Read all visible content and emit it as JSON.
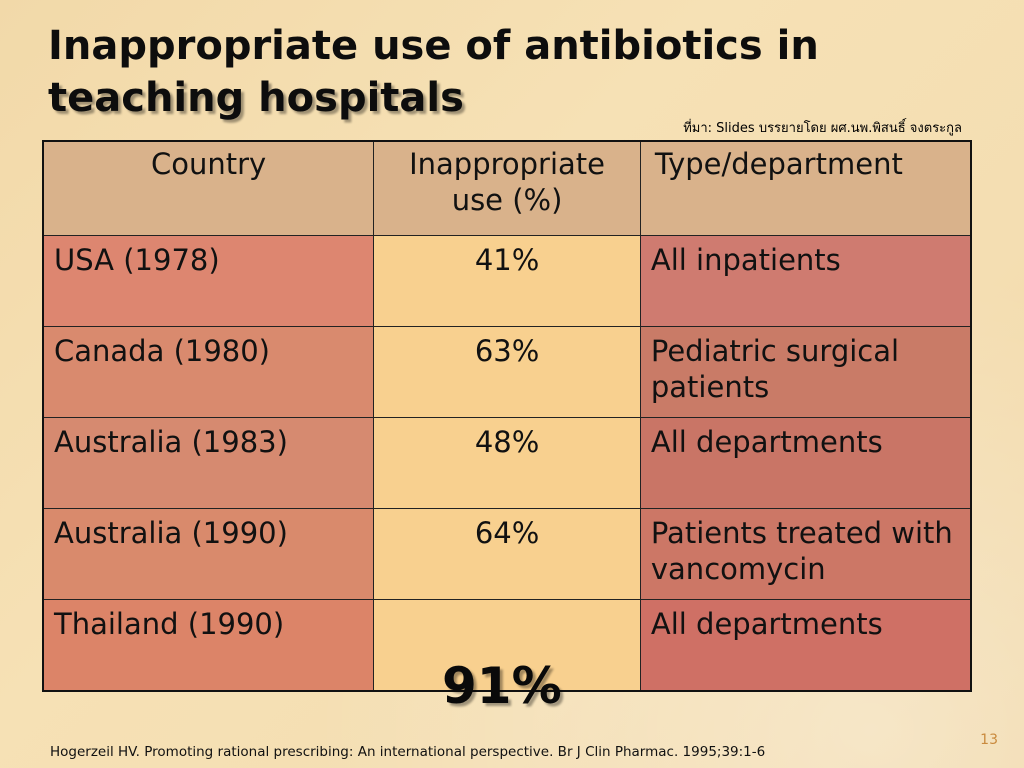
{
  "slide": {
    "title_line1": "Inappropriate use of antibiotics in",
    "title_line2": "teaching hospitals",
    "source_note": "ที่มา: Slides บรรยายโดย ผศ.นพ.พิสนธิ์ จงตระกูล",
    "footer_citation": "Hogerzeil HV. Promoting rational prescribing: An international perspective. Br J Clin Pharmac. 1995;39:1-6",
    "page_number": "13"
  },
  "table": {
    "headers": [
      "Country",
      "Inappropriate use (%)",
      "Type/department"
    ],
    "rows": [
      {
        "country": "USA (1978)",
        "inappropriate": "41%",
        "type": "All inpatients"
      },
      {
        "country": "Canada (1980)",
        "inappropriate": "63%",
        "type": "Pediatric surgical patients"
      },
      {
        "country": "Australia (1983)",
        "inappropriate": "48%",
        "type": "All departments"
      },
      {
        "country": "Australia (1990)",
        "inappropriate": "64%",
        "type": "Patients treated with vancomycin"
      },
      {
        "country": "Thailand (1990)",
        "inappropriate": "91%",
        "type": "All departments"
      }
    ]
  },
  "colors": {
    "background": "#f4deb2",
    "header_fill": "#d9b28b",
    "country_fill": "#d9866e",
    "percent_fill": "#f8d08f",
    "type_fill": "#cf7868",
    "page_number": "#c98a3e"
  }
}
